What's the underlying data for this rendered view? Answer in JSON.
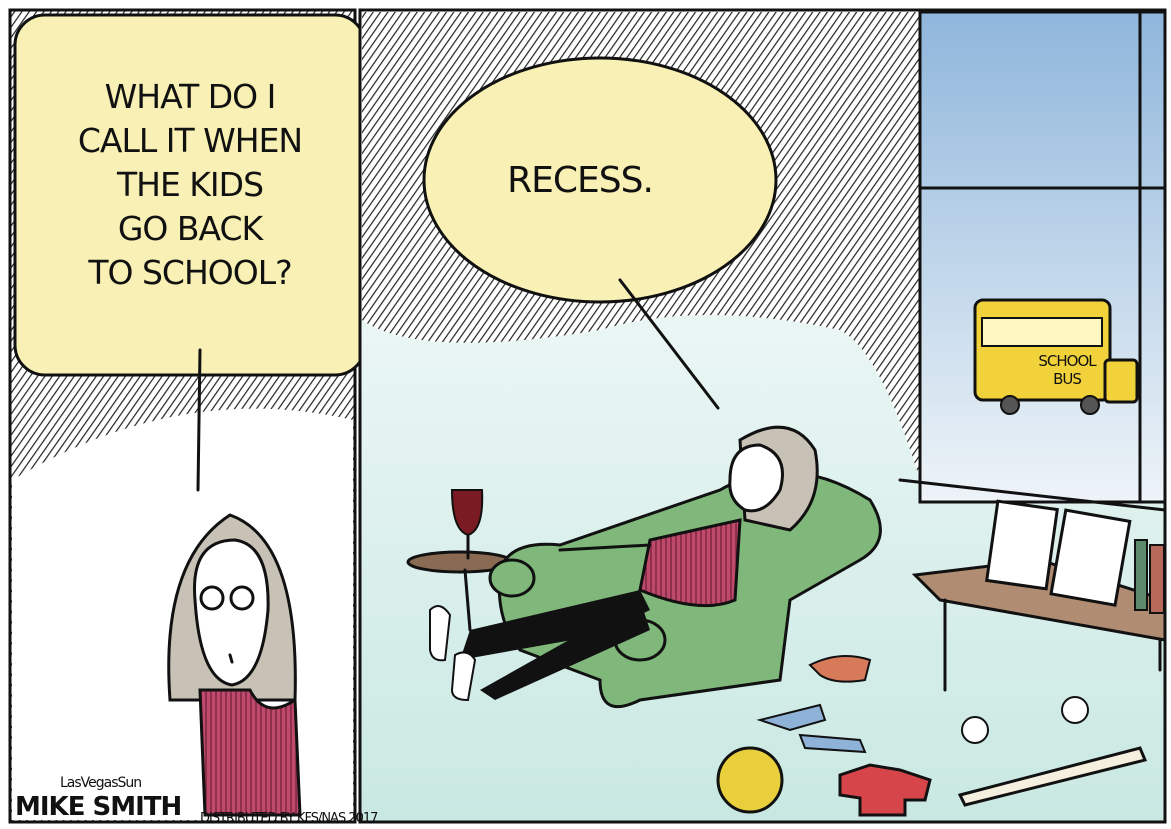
{
  "left_panel": {
    "speech_lines": [
      "WHAT DO I",
      "CALL IT WHEN",
      "THE KIDS",
      "GO BACK",
      "TO SCHOOL?"
    ]
  },
  "right_panel": {
    "speech": "RECESS.",
    "bus_sign": [
      "SCHOOL",
      "BUS"
    ]
  },
  "credits": {
    "paper": "LasVegasSun",
    "artist": "MIKE SMITH",
    "distributor": "DISTRIBUTED BY KFS/NAS 2017"
  }
}
